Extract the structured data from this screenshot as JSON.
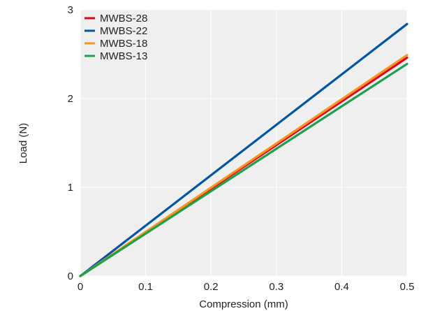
{
  "chart_data": {
    "type": "line",
    "title": "",
    "xlabel": "Compression (mm)",
    "ylabel": "Load (N)",
    "xlim": [
      0,
      0.5
    ],
    "ylim": [
      0,
      3
    ],
    "x_ticks": [
      "0",
      "0.1",
      "0.2",
      "0.3",
      "0.4",
      "0.5"
    ],
    "y_ticks": [
      "0",
      "1",
      "2",
      "3"
    ],
    "grid": true,
    "legend_position": "top-left",
    "plot_background": "#efefef",
    "grid_color": "#ffffff",
    "x": [
      0,
      0.5
    ],
    "series": [
      {
        "name": "MWBS-28",
        "color": "#e3001b",
        "values": [
          0,
          2.46
        ]
      },
      {
        "name": "MWBS-22",
        "color": "#0055a5",
        "values": [
          0,
          2.84
        ]
      },
      {
        "name": "MWBS-18",
        "color": "#f7941d",
        "values": [
          0,
          2.49
        ]
      },
      {
        "name": "MWBS-13",
        "color": "#1ea04b",
        "values": [
          0,
          2.39
        ]
      }
    ]
  }
}
